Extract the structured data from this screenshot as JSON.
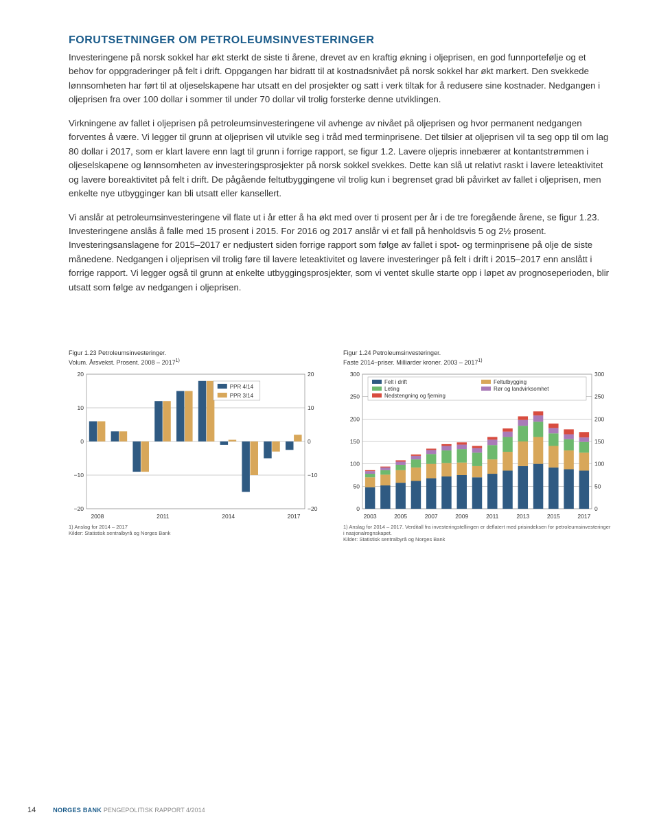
{
  "heading": "FORUTSETNINGER OM PETROLEUMSINVESTERINGER",
  "paragraphs": {
    "p1": "Investeringene på norsk sokkel har økt sterkt de siste ti årene, drevet av en kraftig økning i oljeprisen, en god funnportefølje og et behov for oppgraderinger på felt i drift. Oppgangen har bidratt til at kostnadsnivået på norsk sokkel har økt markert. Den svekkede lønnsomheten har ført til at oljeselskapene har utsatt en del prosjekter og satt i verk tiltak for å redusere sine kostnader. Nedgangen i oljeprisen fra over 100 dollar i sommer til under 70 dollar vil trolig forsterke denne utviklingen.",
    "p2": "Virkningene av fallet i oljeprisen på petroleumsinvesteringene vil avhenge av nivået på oljeprisen og hvor permanent nedgangen forventes å være. Vi legger til grunn at oljeprisen vil utvikle seg i tråd med terminprisene. Det tilsier at oljeprisen vil ta seg opp til om lag 80 dollar i 2017, som er klart lavere enn lagt til grunn i forrige rapport, se figur 1.2. Lavere oljepris innebærer at kontantstrømmen i oljeselskapene og lønnsomheten av investeringsprosjekter på norsk sokkel svekkes. Dette kan slå ut relativt raskt i lavere leteaktivitet og lavere boreaktivitet på felt i drift. De pågående feltutbyggingene vil trolig kun i begrenset grad bli påvirket av fallet i oljeprisen, men enkelte nye utbygginger kan bli utsatt eller kansellert.",
    "p3": "Vi anslår at petroleumsinvesteringene vil flate ut i år etter å ha økt med over ti prosent per år i de tre foregående årene, se figur 1.23. Investeringene anslås å falle med 15 prosent i 2015. For 2016 og 2017 anslår vi et fall på henholdsvis 5 og 2½ prosent. Investeringsanslagene for 2015–2017 er nedjustert siden forrige rapport som følge av fallet i spot- og terminprisene på olje de siste månedene. Nedgangen i oljeprisen vil trolig føre til lavere leteaktivitet og lavere investeringer på felt i drift i 2015–2017 enn anslått i forrige rapport. Vi legger også til grunn at enkelte utbyggingsprosjekter, som vi ventet skulle starte opp i løpet av prognoseperioden, blir utsatt som følge av nedgangen i oljeprisen."
  },
  "chart1": {
    "title_l1": "Figur 1.23 Petroleumsinvesteringer.",
    "title_l2": "Volum. Årsvekst. Prosent. 2008 – 2017",
    "title_sup": "1)",
    "type": "grouped-bar",
    "ylim": [
      -20,
      20
    ],
    "ytick_step": 10,
    "xticks": [
      "2008",
      "2011",
      "2014",
      "2017"
    ],
    "years": [
      2008,
      2009,
      2010,
      2011,
      2012,
      2013,
      2014,
      2015,
      2016,
      2017
    ],
    "series": {
      "ppr414": {
        "label": "PPR 4/14",
        "color": "#2f5a82",
        "values": [
          6,
          3,
          -9,
          12,
          15,
          18,
          -1,
          -15,
          -5,
          -2.5
        ]
      },
      "ppr314": {
        "label": "PPR 3/14",
        "color": "#d8a75a",
        "values": [
          6,
          3,
          -9,
          12,
          15,
          18,
          0.5,
          -10,
          -3,
          2
        ]
      }
    },
    "bar_width": 0.38,
    "grid_color": "#999999",
    "background": "#ffffff",
    "footnote_l1": "1) Anslag for 2014 – 2017",
    "footnote_l2": "Kilder: Statistisk sentralbyrå og Norges Bank"
  },
  "chart2": {
    "title_l1": "Figur 1.24 Petroleumsinvesteringer.",
    "title_l2": "Faste 2014−priser. Milliarder kroner. 2003 – 2017",
    "title_sup": "1)",
    "type": "stacked-bar",
    "ylim": [
      0,
      300
    ],
    "ytick_step": 50,
    "xticks": [
      "2003",
      "2005",
      "2007",
      "2009",
      "2011",
      "2013",
      "2015",
      "2017"
    ],
    "years": [
      2003,
      2004,
      2005,
      2006,
      2007,
      2008,
      2009,
      2010,
      2011,
      2012,
      2013,
      2014,
      2015,
      2016,
      2017
    ],
    "legend": {
      "felt": {
        "label": "Felt i drift",
        "color": "#2f5a82"
      },
      "leting": {
        "label": "Leting",
        "color": "#6db96d"
      },
      "neds": {
        "label": "Nedstengning og fjerning",
        "color": "#d84c3f"
      },
      "feltut": {
        "label": "Feltutbygging",
        "color": "#d8a75a"
      },
      "ror": {
        "label": "Rør og landvirksomhet",
        "color": "#a97bb8"
      }
    },
    "stack_order": [
      "felt",
      "feltut",
      "leting",
      "ror",
      "neds"
    ],
    "values": {
      "felt": [
        48,
        52,
        58,
        62,
        68,
        72,
        75,
        70,
        78,
        85,
        95,
        100,
        92,
        88,
        85
      ],
      "feltut": [
        22,
        24,
        28,
        30,
        32,
        30,
        28,
        25,
        32,
        42,
        55,
        60,
        48,
        42,
        40
      ],
      "leting": [
        8,
        10,
        12,
        18,
        22,
        28,
        30,
        30,
        32,
        33,
        35,
        34,
        28,
        25,
        24
      ],
      "ror": [
        6,
        6,
        7,
        8,
        9,
        10,
        10,
        10,
        12,
        12,
        13,
        14,
        12,
        11,
        10
      ],
      "neds": [
        2,
        2,
        3,
        3,
        3,
        4,
        5,
        5,
        6,
        7,
        8,
        9,
        10,
        11,
        12
      ]
    },
    "bar_width": 0.65,
    "grid_color": "#999999",
    "background": "#ffffff",
    "footnote_l1": "1) Anslag for 2014 – 2017. Verditall fra investeringstellingen er deflatert med prisindeksen for petroleumsinvesteringer i nasjonalregnskapet.",
    "footnote_l2": "Kilder: Statistisk sentralbyrå og Norges Bank"
  },
  "footer": {
    "page_number": "14",
    "norges_bank": "NORGES BANK",
    "report": "PENGEPOLITISK RAPPORT  4/2014"
  }
}
